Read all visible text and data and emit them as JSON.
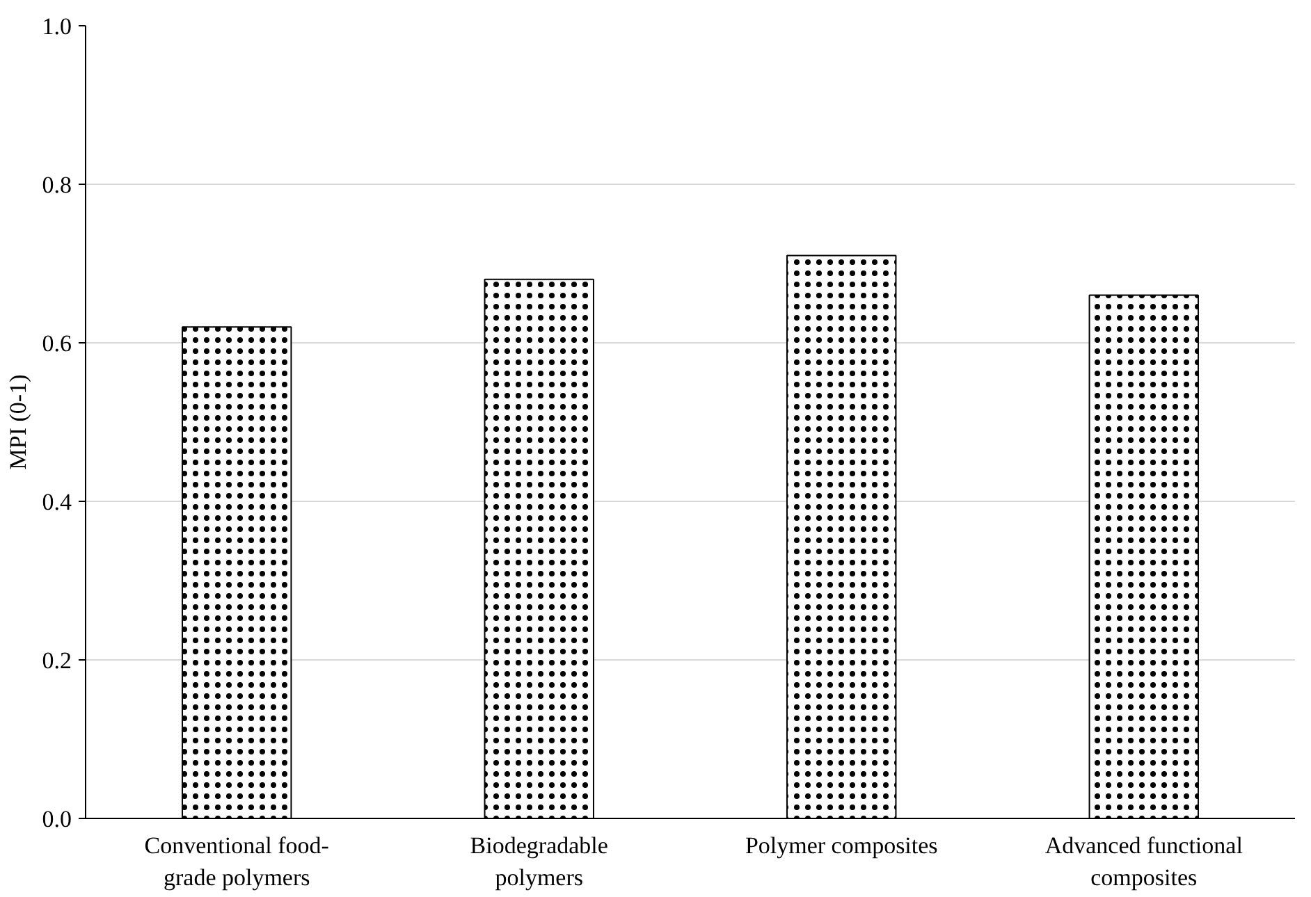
{
  "chart_data": {
    "type": "bar",
    "ylabel": "MPI (0-1)",
    "categories": [
      "Conventional food-\ngrade polymers",
      "Biodegradable\npolymers",
      "Polymer composites",
      "Advanced functional\ncomposites"
    ],
    "values": [
      0.62,
      0.68,
      0.71,
      0.66
    ],
    "color": "#ffffff",
    "ylim": [
      0,
      1
    ],
    "yticks": [
      {
        "value": 0,
        "label": "0.0"
      },
      0.2,
      0.4,
      0.6,
      0.8,
      {
        "value": 1,
        "label": "1.0"
      }
    ],
    "grid": "y"
  }
}
